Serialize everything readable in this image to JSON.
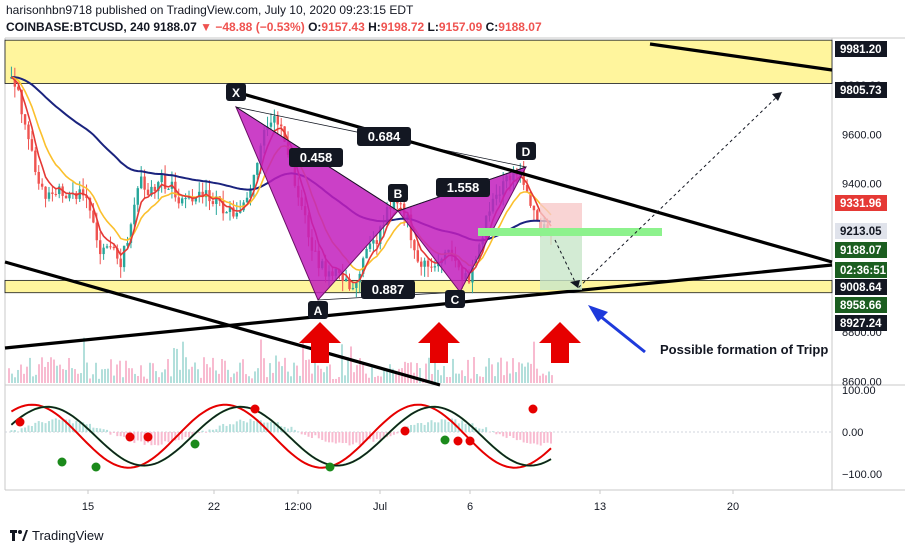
{
  "header": {
    "published_line": "harisonhbn9718 published on TradingView.com, July 10, 2020 09:23:15 EDT",
    "symbol": "COINBASE:BTCUSD, 240",
    "last": "9188.07",
    "change": "▼ −48.88 (−0.53%)",
    "o_label": "O:",
    "o_value": "9157.43",
    "h_label": "H:",
    "h_value": "9198.72",
    "l_label": "L:",
    "l_value": "9157.09",
    "c_label": "C:",
    "c_value": "9188.07"
  },
  "annotation_text": "Possible formation of Tripp",
  "brand": "TradingView",
  "colors": {
    "up": "#26a69a",
    "down": "#ef5350",
    "ema_fast": "#e53935",
    "ema_mid": "#fbc02d",
    "ema_slow": "#1a237e",
    "zone": "#fff59d",
    "pattern": "#c21fbd",
    "arrow": "#e60000",
    "blue_arrow": "#1e3adb",
    "price_tag": "#131722",
    "red_tag": "#e53935",
    "green_tag": "#1b5e20"
  },
  "chart_data": [
    {
      "type": "candlestick",
      "title": "COINBASE:BTCUSD, 240",
      "x_ticks": [
        "15",
        "22",
        "12:00",
        "Jul",
        "6",
        "13",
        "20"
      ],
      "y_ticks": [
        8600.0,
        8800.0,
        9000.0,
        9200.0,
        9400.0,
        9600.0,
        9800.0
      ],
      "ylim": [
        8560,
        10020
      ],
      "price_tags": [
        {
          "value": "9981.20",
          "style": "dark"
        },
        {
          "value": "9805.73",
          "style": "dark"
        },
        {
          "value": "9331.96",
          "style": "red"
        },
        {
          "value": "9213.05",
          "style": "gray"
        },
        {
          "value": "9188.07",
          "style": "green"
        },
        {
          "value": "02:36:51",
          "style": "green"
        },
        {
          "value": "9008.64",
          "style": "dark"
        },
        {
          "value": "8958.66",
          "style": "green"
        },
        {
          "value": "8927.24",
          "style": "dark"
        }
      ],
      "resistance_zone": [
        9805.73,
        9981.2
      ],
      "support_zone": [
        8958.66,
        9008.64
      ],
      "pattern_points": [
        {
          "label": "X",
          "price": 9730
        },
        {
          "label": "A",
          "price": 8960
        },
        {
          "label": "B",
          "price": 9400
        },
        {
          "label": "C",
          "price": 8960
        },
        {
          "label": "D",
          "price": 9470
        }
      ],
      "ratios": [
        "0.684",
        "0.458",
        "1.558",
        "0.887"
      ],
      "close_path": [
        9850,
        9780,
        9560,
        9400,
        9340,
        9390,
        9350,
        9360,
        9300,
        9100,
        9150,
        9050,
        9260,
        9400,
        9370,
        9410,
        9390,
        9320,
        9330,
        9370,
        9340,
        9310,
        9290,
        9300,
        9420,
        9640,
        9680,
        9600,
        9400,
        9250,
        9100,
        9050,
        9050,
        8990,
        9000,
        9120,
        9180,
        9280,
        9310,
        9260,
        9080,
        9060,
        9100,
        9120,
        9050,
        9000,
        9150,
        9300,
        9380,
        9420,
        9450,
        9330,
        9220,
        9188
      ]
    },
    {
      "type": "oscillator",
      "y_ticks": [
        100.0,
        0.0,
        -100.0
      ],
      "ylim": [
        -125,
        115
      ]
    }
  ]
}
